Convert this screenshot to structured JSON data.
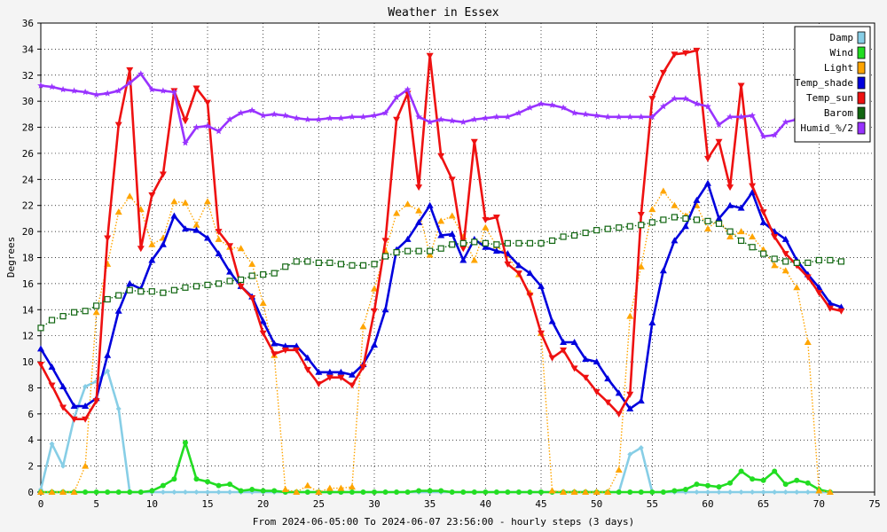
{
  "chart_data": {
    "type": "line",
    "title": "Weather in Essex",
    "xlabel": "From 2024-06-05:00 To 2024-06-07 23:56:00 - hourly steps (3 days)",
    "ylabel": "Degrees",
    "xlim": [
      0,
      75
    ],
    "ylim": [
      0,
      36
    ],
    "x_ticks": [
      0,
      5,
      10,
      15,
      20,
      25,
      30,
      35,
      40,
      45,
      50,
      55,
      60,
      65,
      70,
      75
    ],
    "y_ticks": [
      0,
      2,
      4,
      6,
      8,
      10,
      12,
      14,
      16,
      18,
      20,
      22,
      24,
      26,
      28,
      30,
      32,
      34,
      36
    ],
    "grid": true,
    "legend_position": "top-right",
    "series": [
      {
        "name": "Damp",
        "color": "#87cee6",
        "marker": "diamond",
        "dash": false,
        "values": [
          0.2,
          3.7,
          2.0,
          5.7,
          8.1,
          8.5,
          9.3,
          6.4,
          0,
          0,
          0,
          0,
          0,
          0,
          0,
          0,
          0,
          0,
          0,
          0,
          0,
          0,
          0,
          0,
          0,
          0,
          0,
          0,
          0,
          0,
          0,
          0,
          0,
          0,
          0,
          0,
          0,
          0,
          0,
          0,
          0,
          0,
          0,
          0,
          0,
          0,
          0,
          0,
          0,
          0,
          0,
          0,
          0,
          2.9,
          3.4,
          0,
          0,
          0,
          0,
          0,
          0,
          0,
          0,
          0,
          0,
          0,
          0,
          0,
          0,
          0,
          0,
          0
        ]
      },
      {
        "name": "Wind",
        "color": "#22dd22",
        "marker": "circle",
        "dash": false,
        "values": [
          0,
          0,
          0,
          0,
          0,
          0,
          0,
          0,
          0,
          0,
          0.1,
          0.5,
          1.0,
          3.8,
          1.0,
          0.8,
          0.5,
          0.6,
          0.1,
          0.2,
          0.1,
          0.1,
          0,
          0,
          0,
          0,
          0,
          0,
          0,
          0,
          0,
          0,
          0,
          0,
          0.1,
          0.1,
          0.1,
          0,
          0,
          0,
          0,
          0,
          0,
          0,
          0,
          0,
          0,
          0,
          0,
          0,
          0,
          0,
          0,
          0,
          0,
          0,
          0,
          0.1,
          0.2,
          0.6,
          0.5,
          0.4,
          0.7,
          1.6,
          1.0,
          0.9,
          1.6,
          0.6,
          0.9,
          0.7,
          0.2,
          0
        ]
      },
      {
        "name": "Light",
        "color": "#ffa500",
        "marker": "triangle-up",
        "dash": true,
        "values": [
          0,
          0,
          0,
          0,
          2.0,
          13.8,
          17.5,
          21.5,
          22.7,
          21.7,
          19.0,
          19.5,
          22.3,
          22.2,
          20.5,
          22.3,
          19.4,
          18.8,
          18.7,
          17.5,
          14.5,
          10.5,
          0.2,
          0,
          0.5,
          0,
          0.3,
          0.3,
          0.4,
          12.7,
          15.6,
          18.5,
          21.4,
          22.1,
          21.6,
          18.2,
          20.8,
          21.2,
          19.6,
          17.8,
          20.3,
          18.9,
          18.2,
          16.7,
          15.3,
          12.2,
          0.1,
          0,
          0,
          0,
          0,
          0,
          1.7,
          13.5,
          17.3,
          21.7,
          23.1,
          22.0,
          21.2,
          22.0,
          20.2,
          21.0,
          19.6,
          20.0,
          19.6,
          18.6,
          17.4,
          17.0,
          15.7,
          11.5,
          0.1,
          0
        ]
      },
      {
        "name": "Temp_shade",
        "color": "#0000dd",
        "marker": "triangle-up",
        "dash": false,
        "values": [
          11.0,
          9.6,
          8.1,
          6.6,
          6.6,
          7.2,
          10.5,
          13.9,
          16.0,
          15.6,
          17.8,
          19.0,
          21.2,
          20.2,
          20.1,
          19.5,
          18.3,
          16.9,
          15.8,
          15.0,
          13.1,
          11.4,
          11.2,
          11.2,
          10.3,
          9.2,
          9.2,
          9.2,
          9.0,
          9.8,
          11.3,
          14.0,
          18.6,
          19.4,
          20.7,
          22.0,
          19.7,
          19.8,
          17.8,
          19.4,
          18.8,
          18.5,
          18.3,
          17.4,
          16.8,
          15.8,
          13.1,
          11.5,
          11.5,
          10.2,
          10.0,
          8.7,
          7.6,
          6.4,
          7.0,
          13.0,
          17.0,
          19.3,
          20.4,
          22.4,
          23.7,
          21.0,
          22.0,
          21.8,
          23.0,
          20.7,
          20.0,
          19.4,
          17.8,
          16.7,
          15.7,
          14.5,
          14.2
        ]
      },
      {
        "name": "Temp_sun",
        "color": "#ee1111",
        "marker": "triangle-down",
        "dash": false,
        "values": [
          9.8,
          8.2,
          6.5,
          5.6,
          5.6,
          7.0,
          19.5,
          28.2,
          32.4,
          18.7,
          22.8,
          24.4,
          30.8,
          28.5,
          31.0,
          29.9,
          20.0,
          18.9,
          15.8,
          14.9,
          12.2,
          10.6,
          10.9,
          10.9,
          9.4,
          8.3,
          8.8,
          8.8,
          8.2,
          9.6,
          13.9,
          19.3,
          28.6,
          30.6,
          23.4,
          33.5,
          25.8,
          24.0,
          18.7,
          26.9,
          20.9,
          21.1,
          17.5,
          16.8,
          15.1,
          12.2,
          10.3,
          10.9,
          9.5,
          8.8,
          7.7,
          6.9,
          6.0,
          7.5,
          21.3,
          30.2,
          32.2,
          33.6,
          33.7,
          33.9,
          25.6,
          26.9,
          23.4,
          31.2,
          23.5,
          21.5,
          19.6,
          18.3,
          17.4,
          16.5,
          15.3,
          14.1,
          13.9
        ]
      },
      {
        "name": "Barom",
        "color": "#116611",
        "marker": "square",
        "dash": true,
        "values": [
          12.6,
          13.2,
          13.5,
          13.8,
          13.9,
          14.3,
          14.8,
          15.1,
          15.5,
          15.4,
          15.4,
          15.3,
          15.5,
          15.7,
          15.8,
          15.9,
          16.0,
          16.2,
          16.3,
          16.6,
          16.7,
          16.8,
          17.3,
          17.7,
          17.7,
          17.6,
          17.6,
          17.5,
          17.4,
          17.4,
          17.5,
          18.1,
          18.4,
          18.5,
          18.5,
          18.5,
          18.7,
          19.0,
          19.1,
          19.2,
          19.1,
          19.0,
          19.1,
          19.1,
          19.1,
          19.1,
          19.3,
          19.6,
          19.7,
          19.9,
          20.1,
          20.2,
          20.3,
          20.4,
          20.5,
          20.7,
          20.9,
          21.1,
          21.0,
          20.9,
          20.8,
          20.6,
          20.0,
          19.3,
          18.8,
          18.3,
          17.9,
          17.7,
          17.6,
          17.6,
          17.8,
          17.8,
          17.7
        ]
      },
      {
        "name": "Humid_%/2",
        "color": "#9933ff",
        "marker": "star",
        "dash": false,
        "values": [
          31.2,
          31.1,
          30.9,
          30.8,
          30.7,
          30.5,
          30.6,
          30.8,
          31.4,
          32.1,
          30.9,
          30.8,
          30.7,
          26.8,
          28.0,
          28.1,
          27.7,
          28.6,
          29.1,
          29.3,
          28.9,
          29.0,
          28.9,
          28.7,
          28.6,
          28.6,
          28.7,
          28.7,
          28.8,
          28.8,
          28.9,
          29.1,
          30.3,
          30.9,
          28.8,
          28.4,
          28.6,
          28.5,
          28.4,
          28.6,
          28.7,
          28.8,
          28.8,
          29.1,
          29.5,
          29.8,
          29.7,
          29.5,
          29.1,
          29.0,
          28.9,
          28.8,
          28.8,
          28.8,
          28.8,
          28.8,
          29.6,
          30.2,
          30.2,
          29.8,
          29.6,
          28.2,
          28.8,
          28.8,
          28.9,
          27.3,
          27.4,
          28.4,
          28.6,
          28.5,
          28.6
        ]
      }
    ]
  }
}
